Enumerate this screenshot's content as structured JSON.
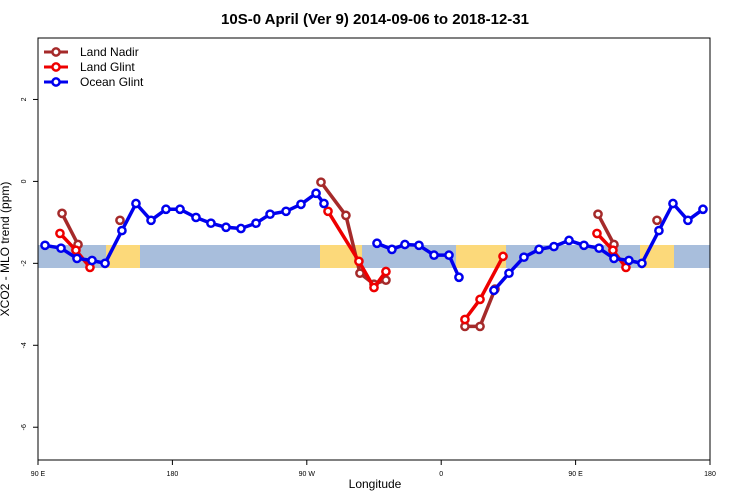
{
  "chart_data": {
    "type": "line",
    "title": "10S-0 April (Ver 9)   2014-09-06 to 2018-12-31",
    "x_label": "Longitude",
    "y_label": "XCO2 - MLO trend (ppm)",
    "xlim": [
      90,
      540
    ],
    "ylim": [
      -6.8,
      3.5
    ],
    "xticks": [
      {
        "value": 90,
        "label": "90 E"
      },
      180,
      {
        "value": 270,
        "label": "90 W"
      },
      {
        "value": 360,
        "label": "0"
      },
      {
        "value": 450,
        "label": "90 E"
      },
      {
        "value": 540,
        "label": "180"
      }
    ],
    "yticks": [
      2,
      0,
      -2,
      -4,
      -6
    ],
    "legend": "top-left",
    "series": [
      {
        "name": "Land Nadir",
        "color": "#a52a2a",
        "x": [
          106.1,
          116.8,
          null,
          144.9,
          null,
          279.5,
          296.2,
          305.6,
          315.0,
          323.0,
          null,
          375.9,
          386.0,
          396.0,
          null,
          465.0,
          475.7,
          null,
          504.5
        ],
        "values": [
          -0.78,
          -1.54,
          null,
          -0.95,
          null,
          -0.02,
          -0.83,
          -2.24,
          -2.51,
          -2.41,
          null,
          -3.54,
          -3.54,
          -2.63,
          null,
          -0.8,
          -1.54,
          null,
          -0.95
        ]
      },
      {
        "name": "Land Glint",
        "color": "#ee0000",
        "x": [
          104.7,
          115.4,
          124.8,
          null,
          284.2,
          304.9,
          315.0,
          323.0,
          null,
          375.9,
          386.0,
          401.4,
          null,
          464.3,
          475.0,
          483.7
        ],
        "values": [
          -1.27,
          -1.68,
          -2.1,
          null,
          -0.73,
          -1.95,
          -2.59,
          -2.2,
          null,
          -3.37,
          -2.88,
          -1.83,
          null,
          -1.27,
          -1.68,
          -2.1
        ]
      },
      {
        "name": "Ocean Glint",
        "color": "#0000ee",
        "x": [
          94.7,
          105.4,
          116.1,
          126.2,
          134.9,
          146.2,
          155.6,
          165.7,
          175.7,
          185.1,
          195.8,
          205.8,
          215.9,
          225.9,
          236.0,
          245.4,
          256.1,
          266.1,
          276.2,
          281.5,
          null,
          317.0,
          327.0,
          335.7,
          345.1,
          355.2,
          365.2,
          371.9,
          null,
          395.3,
          405.4,
          415.4,
          425.5,
          435.5,
          445.6,
          455.6,
          465.7,
          475.7,
          485.7,
          494.4,
          505.8,
          515.2,
          525.2,
          535.3
        ],
        "values": [
          -1.56,
          -1.63,
          -1.88,
          -1.93,
          -2.0,
          -1.2,
          -0.54,
          -0.95,
          -0.68,
          -0.68,
          -0.88,
          -1.02,
          -1.12,
          -1.15,
          -1.02,
          -0.8,
          -0.73,
          -0.56,
          -0.29,
          -0.54,
          null,
          -1.51,
          -1.66,
          -1.54,
          -1.56,
          -1.8,
          -1.8,
          -2.34,
          null,
          -2.66,
          -2.24,
          -1.85,
          -1.66,
          -1.59,
          -1.44,
          -1.56,
          -1.63,
          -1.88,
          -1.93,
          -2.0,
          -1.2,
          -0.54,
          -0.95,
          -0.68
        ]
      }
    ]
  }
}
